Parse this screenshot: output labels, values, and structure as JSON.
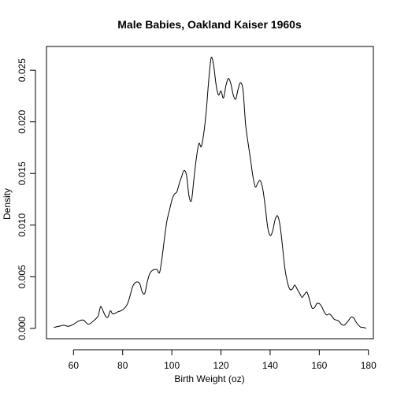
{
  "chart_data": {
    "type": "line",
    "title": "Male Babies, Oakland Kaiser 1960s",
    "xlabel": "Birth Weight (oz)",
    "ylabel": "Density",
    "xlim": [
      49,
      182
    ],
    "ylim": [
      -0.001,
      0.0273
    ],
    "x_ticks": [
      60,
      80,
      100,
      120,
      140,
      160,
      180
    ],
    "x_tick_labels": [
      "60",
      "80",
      "100",
      "120",
      "140",
      "160",
      "180"
    ],
    "y_ticks": [
      0.0,
      0.005,
      0.01,
      0.015,
      0.02,
      0.025
    ],
    "y_tick_labels": [
      "0.000",
      "0.005",
      "0.010",
      "0.015",
      "0.020",
      "0.025"
    ],
    "grid": false,
    "box": true,
    "series": [
      {
        "x": [
          52,
          54,
          56,
          58,
          60,
          62,
          64,
          66,
          68,
          70,
          71,
          72,
          73,
          74,
          75,
          76,
          78,
          80,
          82,
          84,
          85,
          86,
          87,
          88,
          89,
          90,
          91,
          92,
          93,
          94,
          95,
          96,
          97,
          98,
          99,
          100,
          101,
          102,
          103,
          104,
          105,
          106,
          107,
          108,
          109,
          110,
          111,
          112,
          113,
          114,
          115,
          116,
          117,
          118,
          119,
          120,
          121,
          122,
          123,
          124,
          125,
          126,
          127,
          128,
          129,
          130,
          131,
          132,
          133,
          134,
          135,
          136,
          137,
          138,
          139,
          140,
          141,
          142,
          143,
          144,
          145,
          146,
          147,
          148,
          149,
          150,
          151,
          152,
          153,
          154,
          155,
          156,
          157,
          158,
          159,
          160,
          161,
          162,
          163,
          164,
          165,
          166,
          167,
          168,
          169,
          170,
          171,
          172,
          173,
          174,
          175,
          176,
          177,
          178,
          179
        ],
        "y": [
          0.0001,
          0.0002,
          0.0003,
          0.0002,
          0.0004,
          0.0007,
          0.0008,
          0.0004,
          0.0007,
          0.0012,
          0.0021,
          0.0017,
          0.0012,
          0.0011,
          0.0017,
          0.0014,
          0.0016,
          0.0018,
          0.0024,
          0.004,
          0.0044,
          0.0045,
          0.0043,
          0.0035,
          0.0034,
          0.0045,
          0.0053,
          0.0056,
          0.0057,
          0.0057,
          0.0054,
          0.0068,
          0.0087,
          0.0104,
          0.0114,
          0.0124,
          0.013,
          0.0132,
          0.014,
          0.0147,
          0.0153,
          0.0148,
          0.0128,
          0.0124,
          0.0145,
          0.0165,
          0.0179,
          0.0176,
          0.0189,
          0.021,
          0.024,
          0.0262,
          0.0255,
          0.0236,
          0.0226,
          0.023,
          0.0223,
          0.0235,
          0.0242,
          0.0237,
          0.0226,
          0.0222,
          0.0232,
          0.0238,
          0.023,
          0.0198,
          0.018,
          0.0164,
          0.0147,
          0.0137,
          0.0141,
          0.0143,
          0.0135,
          0.0118,
          0.0098,
          0.009,
          0.0094,
          0.0105,
          0.0109,
          0.01,
          0.008,
          0.0058,
          0.0045,
          0.0038,
          0.0038,
          0.0042,
          0.0038,
          0.0034,
          0.003,
          0.0033,
          0.0035,
          0.0028,
          0.002,
          0.002,
          0.0024,
          0.0024,
          0.0021,
          0.0016,
          0.0013,
          0.0014,
          0.0012,
          0.0009,
          0.0008,
          0.0007,
          0.0004,
          0.0003,
          0.0005,
          0.0008,
          0.0011,
          0.001,
          0.0006,
          0.0003,
          0.0001,
          0.0001,
          0.0
        ]
      }
    ]
  }
}
